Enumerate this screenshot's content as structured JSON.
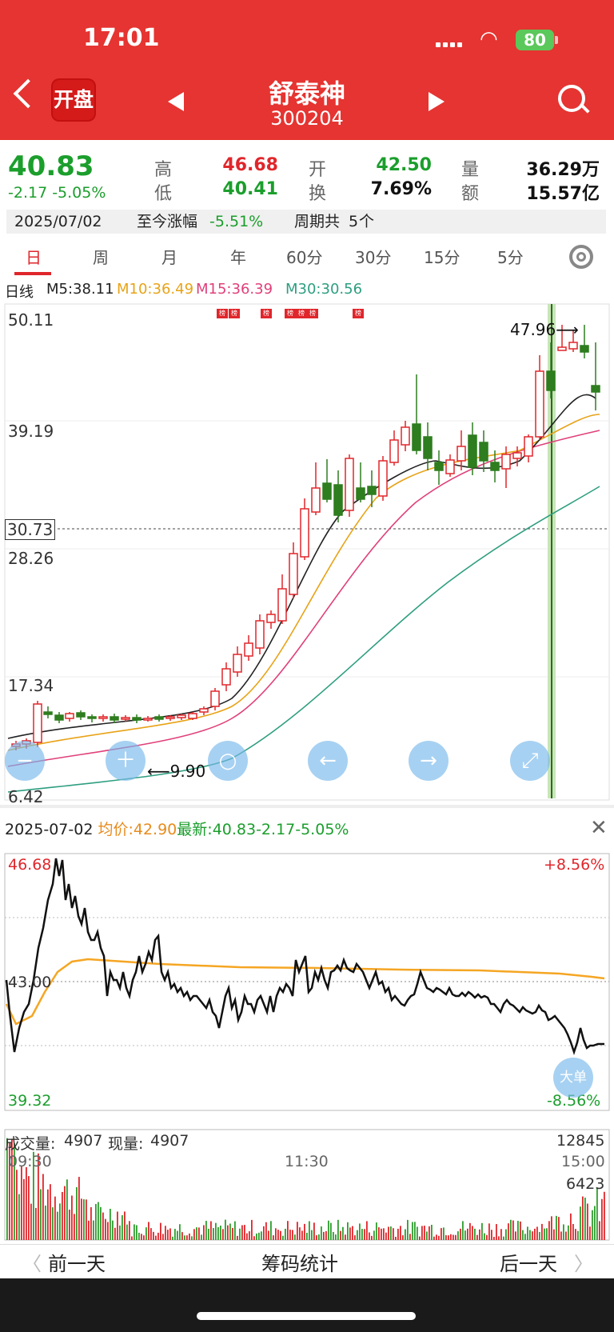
{
  "status": {
    "time": "17:01",
    "battery": "80"
  },
  "header": {
    "badge": "开盘",
    "name": "舒泰神",
    "code": "300204"
  },
  "quote": {
    "price": "40.83",
    "change": "-2.17 -5.05%",
    "high_label": "高",
    "high": "46.68",
    "low_label": "低",
    "low": "40.41",
    "open_label": "开",
    "open": "42.50",
    "turnover_label": "换",
    "turnover": "7.69%",
    "volume_label": "量",
    "volume": "36.29万",
    "amount_label": "额",
    "amount": "15.57亿"
  },
  "infobar": {
    "date": "2025/07/02",
    "range_label": "至今涨幅",
    "range_value": "-5.51%",
    "period_label": "周期共",
    "period_count": "5",
    "period_unit": "个"
  },
  "tabs": [
    "日",
    "周",
    "月",
    "年",
    "60分",
    "30分",
    "15分",
    "5分"
  ],
  "ma": {
    "label": "日线",
    "m5": "M5:38.11",
    "m10": "M10:36.49",
    "m15": "M15:36.39",
    "m30": "M30:30.56"
  },
  "kline": {
    "y_labels": [
      "50.11",
      "39.19",
      "28.26",
      "17.34",
      "6.42"
    ],
    "current_price_tag": "30.73",
    "high_mark": "47.96⟶",
    "low_mark": "⟵9.90",
    "rank_tag": "榜",
    "colors": {
      "up": "#e0262b",
      "down": "#2e7d1f",
      "m5": "#222222",
      "m10": "#e8a317",
      "m15": "#e0407a",
      "m30": "#2e9e80"
    }
  },
  "intraday": {
    "date": "2025-07-02",
    "avg_label": "均价:",
    "avg_value": "42.90",
    "latest_label": "最新:",
    "latest_value": "40.83-2.17-5.05%",
    "y_high": "46.68",
    "y_mid": "43.00",
    "y_low": "39.32",
    "pct_high": "+8.56%",
    "pct_low": "-8.56%",
    "big_order": "大单"
  },
  "volume": {
    "label": "成交量:",
    "value": "4907",
    "now_label": "现量:",
    "now_value": "4907",
    "max": "12845",
    "mid": "6423",
    "t_start": "09:30",
    "t_mid": "11:30",
    "t_end": "15:00"
  },
  "bottom": {
    "prev": "前一天",
    "center": "筹码统计",
    "next": "后一天"
  }
}
